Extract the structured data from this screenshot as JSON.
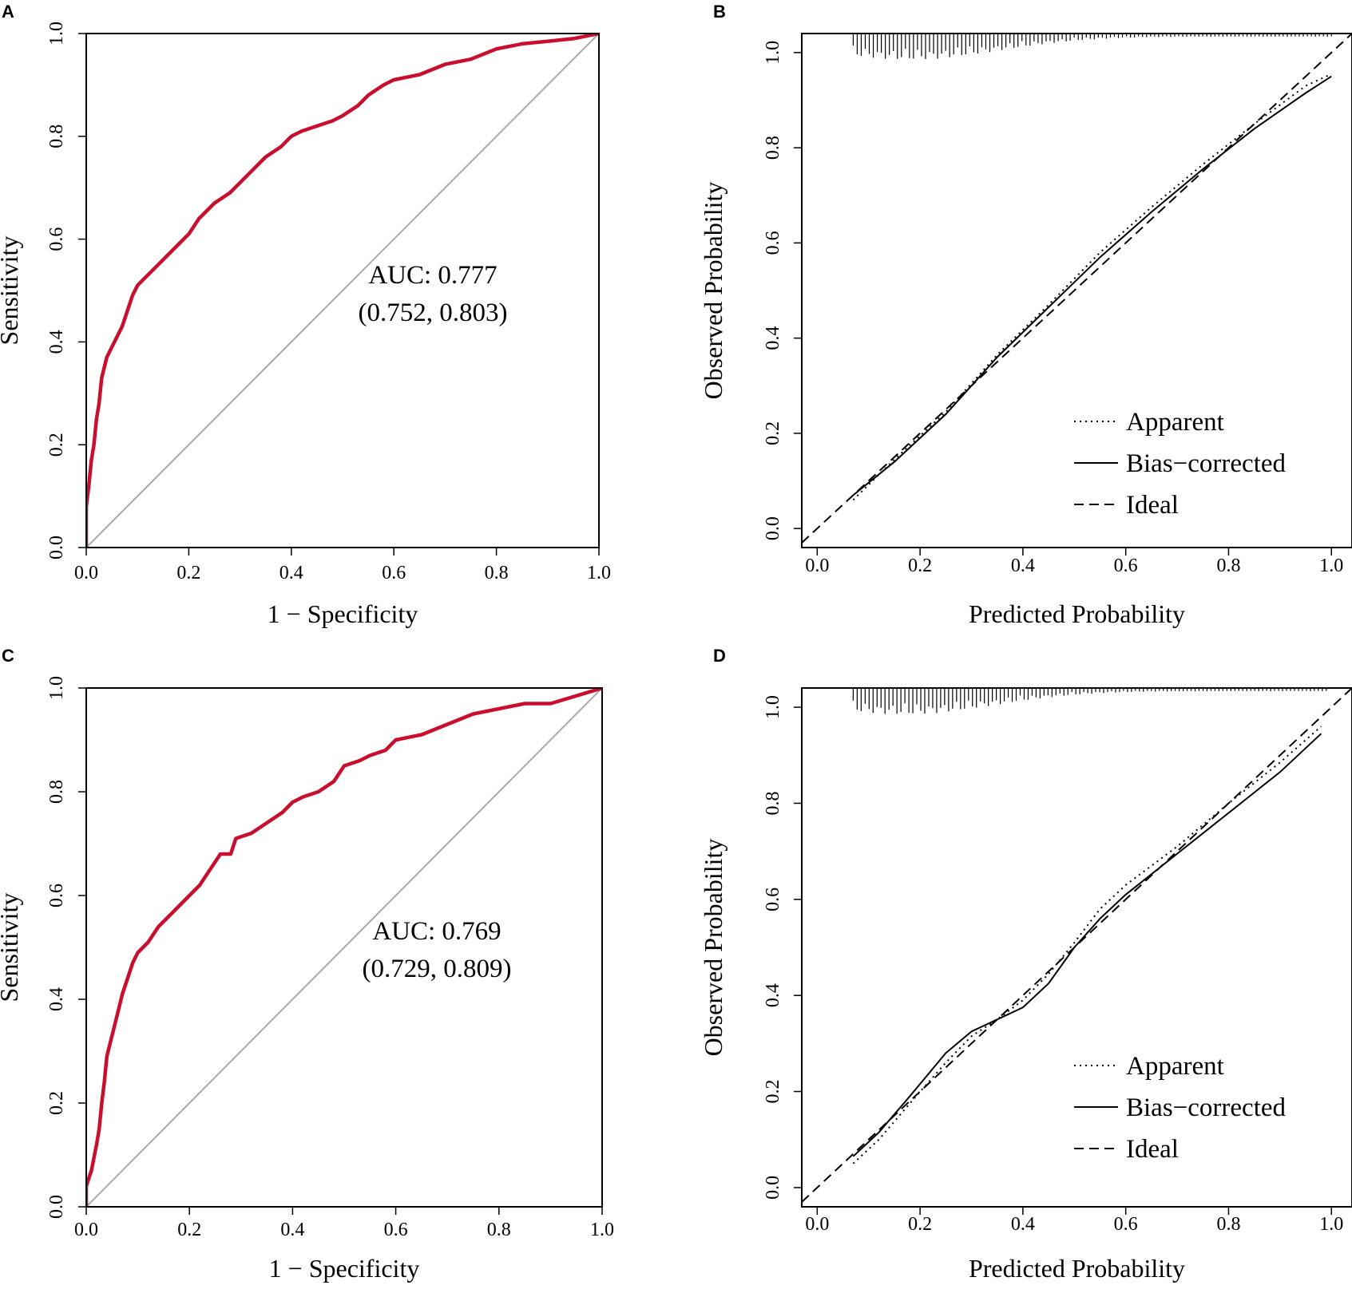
{
  "figure": {
    "panel_letters": [
      "A",
      "B",
      "C",
      "D"
    ]
  },
  "colors": {
    "roc_curve": "#c8102e",
    "diagonal": "#a9a9a9",
    "axes": "#000000"
  },
  "chart_data": [
    {
      "panel": "A",
      "type": "line",
      "xlabel": "1 − Specificity",
      "ylabel": "Sensitivity",
      "xlim": [
        0,
        1
      ],
      "ylim": [
        0,
        1
      ],
      "xticks": [
        "0.0",
        "0.2",
        "0.4",
        "0.6",
        "0.8",
        "1.0"
      ],
      "yticks": [
        "0.0",
        "0.2",
        "0.4",
        "0.6",
        "0.8",
        "1.0"
      ],
      "annotation": [
        "AUC: 0.777",
        "(0.752, 0.803)"
      ],
      "series": [
        {
          "name": "ROC",
          "x": [
            0,
            0,
            0.005,
            0.01,
            0.015,
            0.02,
            0.025,
            0.03,
            0.04,
            0.05,
            0.06,
            0.07,
            0.08,
            0.09,
            0.1,
            0.11,
            0.12,
            0.14,
            0.16,
            0.18,
            0.2,
            0.22,
            0.23,
            0.25,
            0.28,
            0.3,
            0.33,
            0.35,
            0.38,
            0.4,
            0.42,
            0.45,
            0.48,
            0.5,
            0.53,
            0.55,
            0.58,
            0.6,
            0.65,
            0.7,
            0.75,
            0.8,
            0.85,
            0.9,
            0.95,
            1.0
          ],
          "y": [
            0,
            0.08,
            0.12,
            0.17,
            0.2,
            0.25,
            0.28,
            0.33,
            0.37,
            0.39,
            0.41,
            0.43,
            0.46,
            0.49,
            0.51,
            0.52,
            0.53,
            0.55,
            0.57,
            0.59,
            0.61,
            0.64,
            0.65,
            0.67,
            0.69,
            0.71,
            0.74,
            0.76,
            0.78,
            0.8,
            0.81,
            0.82,
            0.83,
            0.84,
            0.86,
            0.88,
            0.9,
            0.91,
            0.92,
            0.94,
            0.95,
            0.97,
            0.98,
            0.985,
            0.99,
            1.0
          ]
        },
        {
          "name": "Reference",
          "x": [
            -0.05,
            1.05
          ],
          "y": [
            -0.05,
            1.05
          ]
        }
      ]
    },
    {
      "panel": "B",
      "type": "line",
      "xlabel": "Predicted Probability",
      "ylabel": "Observed Probability",
      "xlim": [
        -0.03,
        1.04
      ],
      "ylim": [
        -0.04,
        1.04
      ],
      "xticks": [
        "0.0",
        "0.2",
        "0.4",
        "0.6",
        "0.8",
        "1.0"
      ],
      "yticks": [
        "0.0",
        "0.2",
        "0.4",
        "0.6",
        "0.8",
        "1.0"
      ],
      "legend": {
        "position": "bottom-right",
        "entries": [
          "Apparent",
          "Bias−corrected",
          "Ideal"
        ]
      },
      "series": [
        {
          "name": "Apparent",
          "style": "dotted",
          "x": [
            0.07,
            0.15,
            0.25,
            0.35,
            0.45,
            0.55,
            0.65,
            0.75,
            0.85,
            0.95,
            1.0
          ],
          "y": [
            0.06,
            0.145,
            0.245,
            0.365,
            0.47,
            0.58,
            0.675,
            0.765,
            0.85,
            0.93,
            0.955
          ]
        },
        {
          "name": "Bias−corrected",
          "style": "solid",
          "x": [
            0.07,
            0.15,
            0.25,
            0.35,
            0.45,
            0.55,
            0.65,
            0.75,
            0.85,
            0.95,
            1.0
          ],
          "y": [
            0.07,
            0.14,
            0.24,
            0.36,
            0.465,
            0.57,
            0.665,
            0.755,
            0.84,
            0.915,
            0.95
          ]
        },
        {
          "name": "Ideal",
          "style": "dashed",
          "x": [
            -0.03,
            1.04
          ],
          "y": [
            -0.03,
            1.04
          ]
        }
      ],
      "rug_top": {
        "x_start": 0.07,
        "x_end": 1.0,
        "count": 120,
        "peak_x": 0.18,
        "max_length": 0.055
      }
    },
    {
      "panel": "C",
      "type": "line",
      "xlabel": "1 − Specificity",
      "ylabel": "Sensitivity",
      "xlim": [
        0,
        1
      ],
      "ylim": [
        0,
        1
      ],
      "xticks": [
        "0.0",
        "0.2",
        "0.4",
        "0.6",
        "0.8",
        "1.0"
      ],
      "yticks": [
        "0.0",
        "0.2",
        "0.4",
        "0.6",
        "0.8",
        "1.0"
      ],
      "annotation": [
        "AUC: 0.769",
        "(0.729, 0.809)"
      ],
      "series": [
        {
          "name": "ROC",
          "x": [
            0,
            0,
            0.01,
            0.02,
            0.025,
            0.03,
            0.035,
            0.04,
            0.05,
            0.06,
            0.07,
            0.08,
            0.09,
            0.1,
            0.12,
            0.14,
            0.16,
            0.18,
            0.2,
            0.22,
            0.24,
            0.26,
            0.28,
            0.29,
            0.32,
            0.35,
            0.38,
            0.4,
            0.42,
            0.45,
            0.48,
            0.5,
            0.53,
            0.55,
            0.58,
            0.6,
            0.65,
            0.7,
            0.75,
            0.8,
            0.85,
            0.9,
            0.95,
            1.0
          ],
          "y": [
            0,
            0.04,
            0.07,
            0.12,
            0.15,
            0.2,
            0.24,
            0.29,
            0.33,
            0.37,
            0.41,
            0.44,
            0.47,
            0.49,
            0.51,
            0.54,
            0.56,
            0.58,
            0.6,
            0.62,
            0.65,
            0.68,
            0.68,
            0.71,
            0.72,
            0.74,
            0.76,
            0.78,
            0.79,
            0.8,
            0.82,
            0.85,
            0.86,
            0.87,
            0.88,
            0.9,
            0.91,
            0.93,
            0.95,
            0.96,
            0.97,
            0.97,
            0.985,
            1.0
          ]
        },
        {
          "name": "Reference",
          "x": [
            -0.05,
            1.05
          ],
          "y": [
            -0.05,
            1.05
          ]
        }
      ]
    },
    {
      "panel": "D",
      "type": "line",
      "xlabel": "Predicted Probability",
      "ylabel": "Observed Probability",
      "xlim": [
        -0.03,
        1.04
      ],
      "ylim": [
        -0.04,
        1.04
      ],
      "xticks": [
        "0.0",
        "0.2",
        "0.4",
        "0.6",
        "0.8",
        "1.0"
      ],
      "yticks": [
        "0.0",
        "0.2",
        "0.4",
        "0.6",
        "0.8",
        "1.0"
      ],
      "legend": {
        "position": "bottom-right",
        "entries": [
          "Apparent",
          "Bias−corrected",
          "Ideal"
        ]
      },
      "series": [
        {
          "name": "Apparent",
          "style": "dotted",
          "x": [
            0.07,
            0.12,
            0.18,
            0.25,
            0.3,
            0.35,
            0.4,
            0.45,
            0.5,
            0.55,
            0.6,
            0.7,
            0.8,
            0.9,
            0.98
          ],
          "y": [
            0.05,
            0.1,
            0.175,
            0.26,
            0.315,
            0.35,
            0.39,
            0.445,
            0.51,
            0.58,
            0.63,
            0.71,
            0.8,
            0.885,
            0.96
          ]
        },
        {
          "name": "Bias−corrected",
          "style": "solid",
          "x": [
            0.07,
            0.12,
            0.18,
            0.25,
            0.3,
            0.35,
            0.4,
            0.45,
            0.5,
            0.55,
            0.6,
            0.7,
            0.8,
            0.9,
            0.98
          ],
          "y": [
            0.065,
            0.115,
            0.19,
            0.28,
            0.325,
            0.35,
            0.375,
            0.425,
            0.5,
            0.56,
            0.61,
            0.695,
            0.78,
            0.865,
            0.945
          ]
        },
        {
          "name": "Ideal",
          "style": "dashed",
          "x": [
            -0.03,
            1.04
          ],
          "y": [
            -0.03,
            1.04
          ]
        }
      ],
      "rug_top": {
        "x_start": 0.07,
        "x_end": 0.99,
        "count": 120,
        "peak_x": 0.17,
        "max_length": 0.055
      }
    }
  ]
}
